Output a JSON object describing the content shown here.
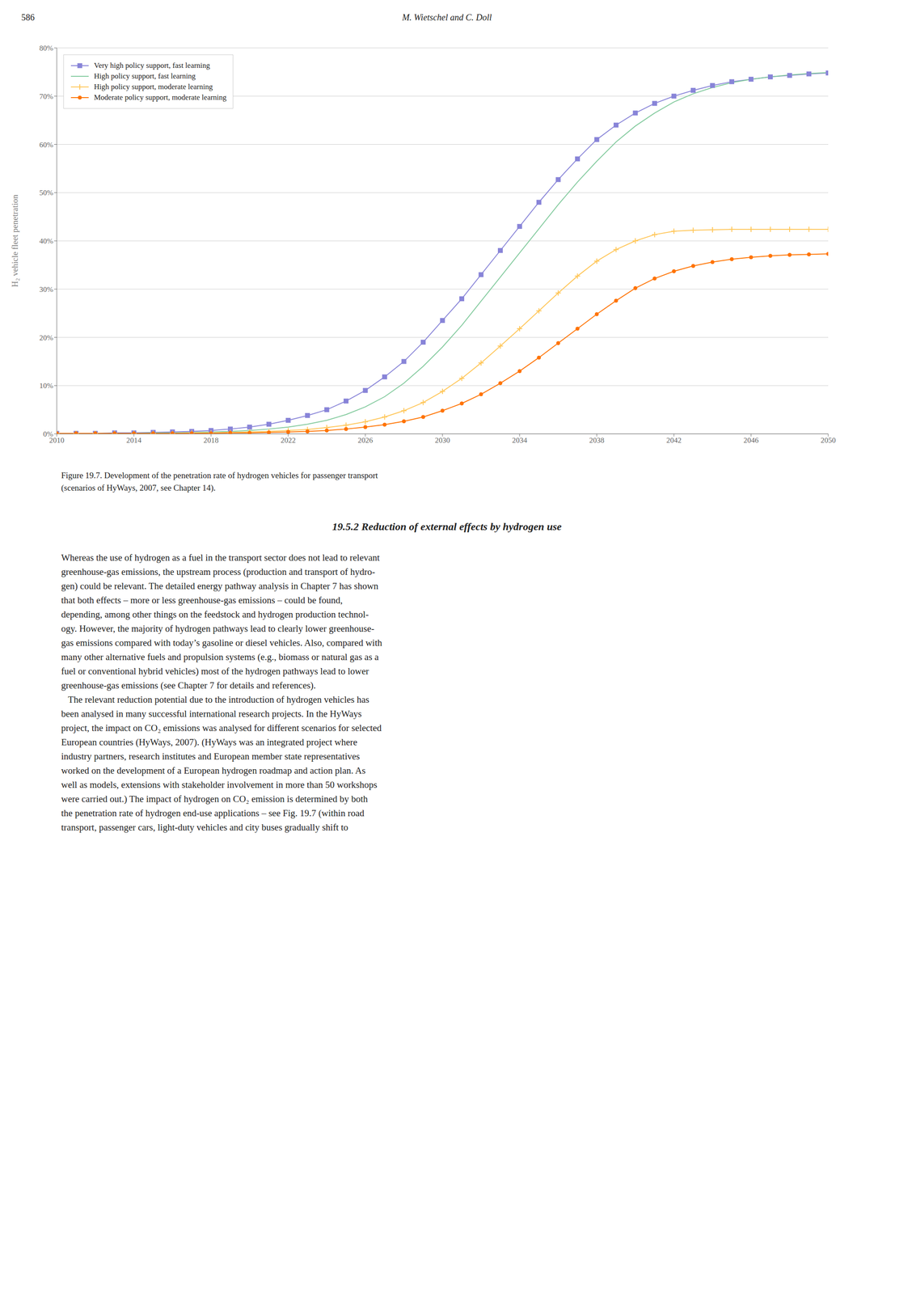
{
  "header_left": "586",
  "header_center": "M. Wietschel and C. Doll",
  "caption": [
    "Figure 19.7.  Development of the penetration rate of hydrogen vehicles for passenger transport",
    "(scenarios of HyWays, 2007, see Chapter 14)."
  ],
  "section_title": "19.5.2  Reduction of external effects by hydrogen use",
  "body_lines": [
    "Whereas the use of hydrogen as a fuel in the transport sector does not lead to relevant",
    "greenhouse-gas emissions, the upstream process (production and transport of hydro-",
    "gen) could be relevant. The detailed energy pathway analysis in Chapter 7 has shown",
    "that both effects – more or less greenhouse-gas emissions – could be found,",
    "depending, among other things on the feedstock and hydrogen production technol-",
    "ogy. However, the majority of hydrogen pathways lead to clearly lower greenhouse-",
    "gas emissions compared with today’s gasoline or diesel vehicles. Also, compared with",
    "many other alternative fuels and propulsion systems (e.g., biomass or natural gas as a",
    "fuel or conventional hybrid vehicles) most of the hydrogen pathways lead to lower",
    "greenhouse-gas emissions (see Chapter 7 for details and references).",
    "   The relevant reduction potential due to the introduction of hydrogen vehicles has",
    "been analysed in many successful international research projects. In the HyWays",
    "project, the impact on CO₂ emissions was analysed for different scenarios for selected",
    "European countries (HyWays, 2007). (HyWays was an integrated project where",
    "industry partners, research institutes and European member state representatives",
    "worked on the development of a European hydrogen roadmap and action plan. As",
    "well as models, extensions with stakeholder involvement in more than 50 workshops",
    "were carried out.) The impact of hydrogen on CO₂ emission is determined by both",
    "the penetration rate of hydrogen end-use applications – see Fig. 19.7 (within road",
    "transport, passenger cars, light-duty vehicles and city buses gradually shift to"
  ],
  "chart_data": {
    "type": "line",
    "ylabel": "H₂ vehicle fleet penetration",
    "xlim": [
      2010,
      2050
    ],
    "xticks": [
      2010,
      2014,
      2018,
      2022,
      2026,
      2030,
      2034,
      2038,
      2042,
      2046,
      2050
    ],
    "ylim": [
      0,
      0.8
    ],
    "yticks": [
      {
        "value": 0.0,
        "label": "0%"
      },
      {
        "value": 0.1,
        "label": "10%"
      },
      {
        "value": 0.2,
        "label": "20%"
      },
      {
        "value": 0.3,
        "label": "30%"
      },
      {
        "value": 0.4,
        "label": "40%"
      },
      {
        "value": 0.5,
        "label": "50%"
      },
      {
        "value": 0.6,
        "label": "60%"
      },
      {
        "value": 0.7,
        "label": "70%"
      },
      {
        "value": 0.8,
        "label": "80%"
      }
    ],
    "grid": "y",
    "legend": "upper left",
    "x": [
      2010,
      2011,
      2012,
      2013,
      2014,
      2015,
      2016,
      2017,
      2018,
      2019,
      2020,
      2021,
      2022,
      2023,
      2024,
      2025,
      2026,
      2027,
      2028,
      2029,
      2030,
      2031,
      2032,
      2033,
      2034,
      2035,
      2036,
      2037,
      2038,
      2039,
      2040,
      2041,
      2042,
      2043,
      2044,
      2045,
      2046,
      2047,
      2048,
      2049,
      2050
    ],
    "series": [
      {
        "name": "Very high policy support, fast learning",
        "marker": "square",
        "values": [
          0.001,
          0.001,
          0.001,
          0.002,
          0.002,
          0.003,
          0.004,
          0.005,
          0.007,
          0.01,
          0.014,
          0.02,
          0.028,
          0.038,
          0.05,
          0.068,
          0.09,
          0.118,
          0.15,
          0.19,
          0.235,
          0.28,
          0.33,
          0.38,
          0.43,
          0.48,
          0.527,
          0.57,
          0.61,
          0.64,
          0.665,
          0.685,
          0.7,
          0.712,
          0.722,
          0.73,
          0.735,
          0.74,
          0.743,
          0.746,
          0.748
        ]
      },
      {
        "name": "High policy support, fast learning",
        "marker": "none",
        "values": [
          0.001,
          0.001,
          0.001,
          0.001,
          0.001,
          0.002,
          0.002,
          0.003,
          0.004,
          0.005,
          0.007,
          0.01,
          0.014,
          0.02,
          0.028,
          0.04,
          0.056,
          0.077,
          0.105,
          0.14,
          0.18,
          0.225,
          0.275,
          0.325,
          0.375,
          0.425,
          0.475,
          0.522,
          0.565,
          0.605,
          0.638,
          0.665,
          0.688,
          0.705,
          0.718,
          0.728,
          0.735,
          0.74,
          0.744,
          0.747,
          0.749
        ]
      },
      {
        "name": "High policy support, moderate learning",
        "marker": "plus",
        "values": [
          0.001,
          0.001,
          0.001,
          0.001,
          0.001,
          0.001,
          0.001,
          0.002,
          0.002,
          0.003,
          0.004,
          0.005,
          0.007,
          0.009,
          0.013,
          0.018,
          0.025,
          0.035,
          0.048,
          0.065,
          0.088,
          0.115,
          0.147,
          0.182,
          0.218,
          0.255,
          0.292,
          0.327,
          0.358,
          0.382,
          0.4,
          0.413,
          0.42,
          0.422,
          0.423,
          0.424,
          0.424,
          0.424,
          0.424,
          0.424,
          0.424
        ]
      },
      {
        "name": "Moderate policy support, moderate learning",
        "marker": "circle",
        "values": [
          0.001,
          0.001,
          0.001,
          0.001,
          0.001,
          0.001,
          0.001,
          0.001,
          0.001,
          0.002,
          0.002,
          0.003,
          0.004,
          0.005,
          0.007,
          0.01,
          0.014,
          0.019,
          0.026,
          0.035,
          0.048,
          0.063,
          0.082,
          0.105,
          0.13,
          0.158,
          0.188,
          0.218,
          0.248,
          0.276,
          0.302,
          0.322,
          0.337,
          0.348,
          0.356,
          0.362,
          0.366,
          0.369,
          0.371,
          0.372,
          0.373
        ]
      }
    ]
  }
}
